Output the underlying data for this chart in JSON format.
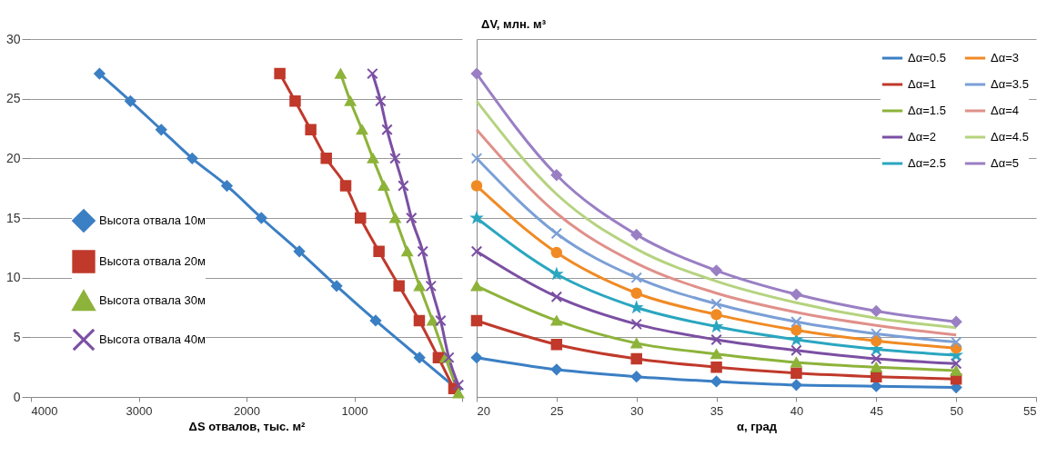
{
  "chart_data": [
    {
      "type": "line",
      "xlabel": "ΔS отвалов, тыс. м²",
      "xlim": [
        4000,
        0
      ],
      "xticks": [
        4000,
        3000,
        2000,
        1000,
        {
          "value": 0,
          "label": null
        }
      ],
      "ylim": [
        0,
        30
      ],
      "yticks": [
        0,
        5,
        10,
        15,
        20,
        25,
        30
      ],
      "grid": "y",
      "legend": "bottom left",
      "series": [
        {
          "name": "Высота отвала 10м",
          "color": "#3b7fc4",
          "marker": "diamond",
          "x": [
            3364,
            3077,
            2791,
            2504,
            2182,
            1862,
            1510,
            1164,
            802,
            395,
            50
          ],
          "values": [
            27.1,
            24.8,
            22.4,
            20,
            17.7,
            15,
            12.2,
            9.3,
            6.4,
            3.3,
            0.7
          ]
        },
        {
          "name": "Высота отвала 20м",
          "color": "#c0392b",
          "marker": "square",
          "x": [
            1691,
            1549,
            1404,
            1260,
            1080,
            943,
            771,
            585,
            397,
            220,
            76
          ],
          "values": [
            27.1,
            24.8,
            22.4,
            20,
            17.7,
            15,
            12.2,
            9.3,
            6.4,
            3.3,
            0.7
          ]
        },
        {
          "name": "Высота отвала 30м",
          "color": "#8db33a",
          "marker": "triangle",
          "x": [
            1127,
            1037,
            928,
            827,
            726,
            621,
            509,
            395,
            274,
            154,
            34
          ],
          "values": [
            27.1,
            24.8,
            22.4,
            20,
            17.7,
            15,
            12.2,
            9.3,
            6.4,
            3.3,
            0.3
          ]
        },
        {
          "name": "Высота отвала 40м",
          "color": "#7b4fa3",
          "marker": "cross",
          "x": [
            832,
            756,
            696,
            621,
            545,
            470,
            365,
            289,
            199,
            123,
            34
          ],
          "values": [
            27.1,
            24.8,
            22.4,
            20,
            17.7,
            15,
            12.2,
            9.3,
            6.4,
            3.3,
            1.0
          ]
        }
      ]
    },
    {
      "type": "line",
      "xlabel": "α, град",
      "ylabel": "ΔV, млн. м³",
      "x": [
        20,
        25,
        30,
        35,
        40,
        45,
        50
      ],
      "xlim": [
        20,
        55
      ],
      "xticks": [
        20,
        25,
        30,
        35,
        40,
        45,
        50,
        55
      ],
      "ylim": [
        0,
        30
      ],
      "yticks": [
        0,
        5,
        10,
        15,
        20,
        25,
        30
      ],
      "tick_labels": "x",
      "grid": "y",
      "legend": "top right",
      "series": [
        {
          "name": "Δα=0.5",
          "color": "#3b7fc4",
          "marker": "diamond",
          "values": [
            3.3,
            2.3,
            1.7,
            1.3,
            1.0,
            0.9,
            0.8
          ]
        },
        {
          "name": "Δα=1",
          "color": "#c0392b",
          "marker": "square",
          "values": [
            6.4,
            4.4,
            3.2,
            2.5,
            2.0,
            1.7,
            1.5
          ]
        },
        {
          "name": "Δα=1.5",
          "color": "#8db33a",
          "marker": "triangle",
          "values": [
            9.3,
            6.4,
            4.5,
            3.6,
            2.9,
            2.5,
            2.2
          ]
        },
        {
          "name": "Δα=2",
          "color": "#7b4fa3",
          "marker": "cross",
          "values": [
            12.2,
            8.4,
            6.1,
            4.8,
            3.9,
            3.2,
            2.8
          ]
        },
        {
          "name": "Δα=2.5",
          "color": "#2aa6c0",
          "marker": "star",
          "values": [
            15,
            10.3,
            7.5,
            5.9,
            4.8,
            4.0,
            3.5
          ]
        },
        {
          "name": "Δα=3",
          "color": "#f08a24",
          "marker": "circle",
          "values": [
            17.7,
            12.1,
            8.7,
            6.9,
            5.6,
            4.7,
            4.1
          ]
        },
        {
          "name": "Δα=3.5",
          "color": "#7b9fd6",
          "marker": "cross",
          "values": [
            20,
            13.7,
            10.0,
            7.8,
            6.3,
            5.3,
            4.6
          ]
        },
        {
          "name": "Δα=4",
          "color": "#e0908a",
          "marker": "none",
          "values": [
            22.4,
            15.4,
            11.2,
            8.7,
            7.1,
            6.0,
            5.2
          ]
        },
        {
          "name": "Δα=4.5",
          "color": "#b5d37f",
          "marker": "none",
          "values": [
            24.8,
            17.0,
            12.4,
            9.7,
            7.9,
            6.6,
            5.8
          ]
        },
        {
          "name": "Δα=5",
          "color": "#9a7fc4",
          "marker": "diamond",
          "values": [
            27.1,
            18.6,
            13.6,
            10.6,
            8.6,
            7.2,
            6.3
          ]
        }
      ]
    }
  ]
}
